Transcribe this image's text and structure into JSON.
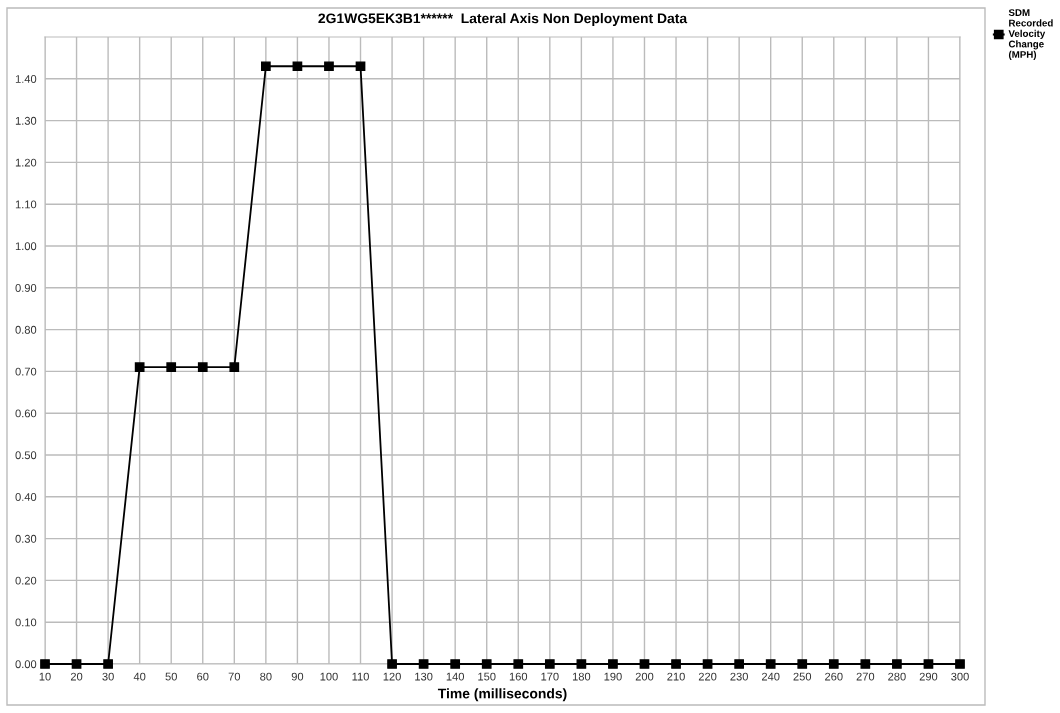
{
  "chart_data": {
    "type": "line",
    "title": "2G1WG5EK3B1******  Lateral Axis Non Deployment Data",
    "xlabel": "Time (milliseconds)",
    "x": [
      10,
      20,
      30,
      40,
      50,
      60,
      70,
      80,
      90,
      100,
      110,
      120,
      130,
      140,
      150,
      160,
      170,
      180,
      190,
      200,
      210,
      220,
      230,
      240,
      250,
      260,
      270,
      280,
      290,
      300
    ],
    "series": [
      {
        "name": "SDM Recorded Velocity Change (MPH)",
        "color": "#000000",
        "values": [
          0,
          0,
          0,
          0.71,
          0.71,
          0.71,
          0.71,
          1.43,
          1.43,
          1.43,
          1.43,
          0,
          0,
          0,
          0,
          0,
          0,
          0,
          0,
          0,
          0,
          0,
          0,
          0,
          0,
          0,
          0,
          0,
          0,
          0
        ]
      }
    ],
    "xlim": [
      10,
      300
    ],
    "xticks": [
      10,
      20,
      30,
      40,
      50,
      60,
      70,
      80,
      90,
      100,
      110,
      120,
      130,
      140,
      150,
      160,
      170,
      180,
      190,
      200,
      210,
      220,
      230,
      240,
      250,
      260,
      270,
      280,
      290,
      300
    ],
    "ylim": [
      0,
      1.5
    ],
    "yticks": [
      {
        "value": 0,
        "label": "0.00"
      },
      {
        "value": 0.1,
        "label": "0.10"
      },
      {
        "value": 0.2,
        "label": "0.20"
      },
      {
        "value": 0.3,
        "label": "0.30"
      },
      {
        "value": 0.4,
        "label": "0.40"
      },
      {
        "value": 0.5,
        "label": "0.50"
      },
      {
        "value": 0.6,
        "label": "0.60"
      },
      {
        "value": 0.7,
        "label": "0.70"
      },
      {
        "value": 0.8,
        "label": "0.80"
      },
      {
        "value": 0.9,
        "label": "0.90"
      },
      {
        "value": 1.0,
        "label": "1.00"
      },
      {
        "value": 1.1,
        "label": "1.10"
      },
      {
        "value": 1.2,
        "label": "1.20"
      },
      {
        "value": 1.3,
        "label": "1.30"
      },
      {
        "value": 1.4,
        "label": "1.40"
      }
    ],
    "grid": true,
    "legend": "right",
    "marker": "square",
    "line_style": "solid"
  }
}
